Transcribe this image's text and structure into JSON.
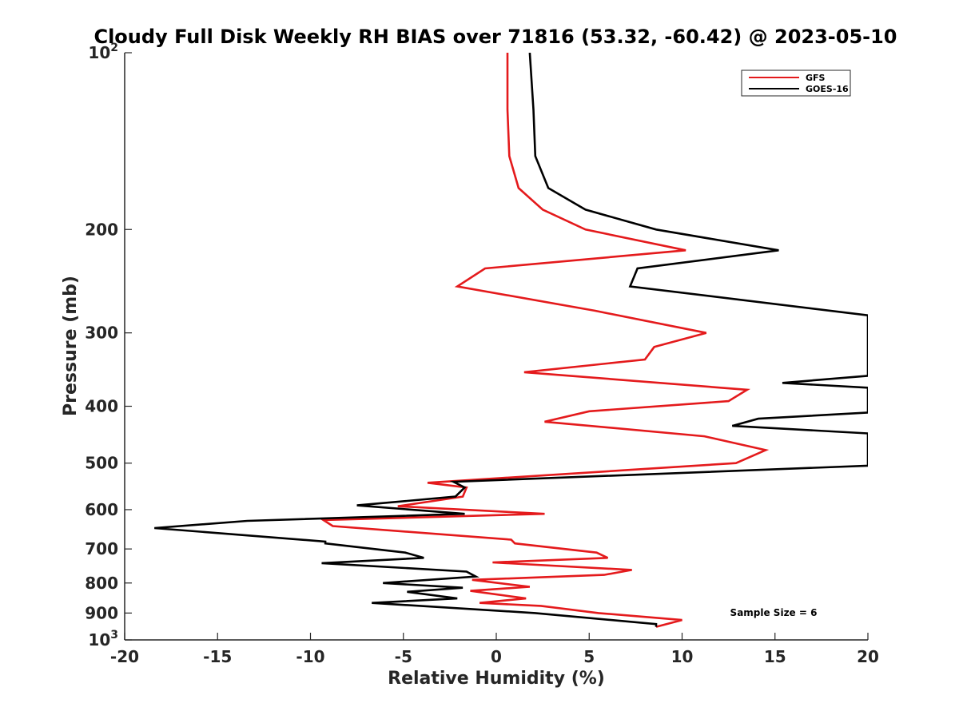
{
  "chart_data": {
    "type": "line",
    "title": "Cloudy Full Disk Weekly RH BIAS over 71816 (53.32, -60.42) @ 2023-05-10",
    "xlabel": "Relative Humidity (%)",
    "ylabel": "Pressure (mb)",
    "xlim": [
      -20,
      20
    ],
    "ylim": [
      100,
      1000
    ],
    "y_scale": "log",
    "y_reversed": true,
    "grid": false,
    "legend_position": "top-right",
    "x_ticks": [
      "-20",
      "-15",
      "-10",
      "-5",
      "0",
      "5",
      "10",
      "15",
      "20"
    ],
    "x_tick_values": [
      -20,
      -15,
      -10,
      -5,
      0,
      5,
      10,
      15,
      20
    ],
    "y_ticks": [
      {
        "value": 100,
        "base": "10",
        "exp": "2"
      },
      {
        "value": 200,
        "base": "200",
        "exp": ""
      },
      {
        "value": 300,
        "base": "300",
        "exp": ""
      },
      {
        "value": 400,
        "base": "400",
        "exp": ""
      },
      {
        "value": 500,
        "base": "500",
        "exp": ""
      },
      {
        "value": 600,
        "base": "600",
        "exp": ""
      },
      {
        "value": 700,
        "base": "700",
        "exp": ""
      },
      {
        "value": 800,
        "base": "800",
        "exp": ""
      },
      {
        "value": 900,
        "base": "900",
        "exp": ""
      },
      {
        "value": 1000,
        "base": "10",
        "exp": "3"
      }
    ],
    "annotation": "Sample Size = 6",
    "series": [
      {
        "name": "GFS",
        "color": "#e41a1c",
        "points": [
          [
            0.6,
            100
          ],
          [
            0.6,
            125
          ],
          [
            0.7,
            150
          ],
          [
            1.2,
            170
          ],
          [
            2.5,
            185
          ],
          [
            4.8,
            200
          ],
          [
            10.2,
            217
          ],
          [
            -0.6,
            233
          ],
          [
            -2.1,
            250
          ],
          [
            5.3,
            275
          ],
          [
            11.3,
            300
          ],
          [
            8.5,
            317
          ],
          [
            8.0,
            333
          ],
          [
            1.5,
            350
          ],
          [
            13.5,
            375
          ],
          [
            12.5,
            392
          ],
          [
            5.0,
            408
          ],
          [
            2.6,
            425
          ],
          [
            11.2,
            450
          ],
          [
            14.5,
            475
          ],
          [
            12.9,
            500
          ],
          [
            -3.7,
            540
          ],
          [
            -1.6,
            550
          ],
          [
            -1.8,
            570
          ],
          [
            -5.3,
            592
          ],
          [
            2.6,
            610
          ],
          [
            -9.3,
            625
          ],
          [
            -8.8,
            640
          ],
          [
            0.8,
            675
          ],
          [
            1.0,
            685
          ],
          [
            5.4,
            710
          ],
          [
            6.0,
            725
          ],
          [
            -0.2,
            738
          ],
          [
            7.3,
            760
          ],
          [
            5.8,
            775
          ],
          [
            -1.3,
            790
          ],
          [
            1.8,
            812
          ],
          [
            -1.4,
            825
          ],
          [
            1.6,
            850
          ],
          [
            -0.9,
            865
          ],
          [
            2.4,
            875
          ],
          [
            5.5,
            900
          ],
          [
            10.0,
            925
          ],
          [
            8.6,
            950
          ]
        ]
      },
      {
        "name": "GOES-16",
        "color": "#000000",
        "points": [
          [
            1.8,
            100
          ],
          [
            2.0,
            125
          ],
          [
            2.1,
            150
          ],
          [
            2.8,
            170
          ],
          [
            4.8,
            185
          ],
          [
            8.6,
            200
          ],
          [
            15.2,
            217
          ],
          [
            7.6,
            233
          ],
          [
            7.2,
            250
          ],
          [
            20.0,
            280
          ],
          [
            20.0,
            355
          ],
          [
            15.4,
            365
          ],
          [
            20.0,
            372
          ],
          [
            20.0,
            410
          ],
          [
            14.1,
            420
          ],
          [
            12.7,
            432
          ],
          [
            20.0,
            445
          ],
          [
            20.0,
            505
          ],
          [
            -2.3,
            538
          ],
          [
            -1.7,
            550
          ],
          [
            -2.2,
            570
          ],
          [
            -7.5,
            590
          ],
          [
            -1.7,
            610
          ],
          [
            -13.4,
            627
          ],
          [
            -18.4,
            645
          ],
          [
            -9.2,
            680
          ],
          [
            -9.2,
            685
          ],
          [
            -4.9,
            710
          ],
          [
            -3.9,
            725
          ],
          [
            -9.4,
            740
          ],
          [
            -1.6,
            765
          ],
          [
            -1.1,
            780
          ],
          [
            -6.1,
            800
          ],
          [
            -1.8,
            815
          ],
          [
            -4.8,
            828
          ],
          [
            -2.1,
            850
          ],
          [
            -6.7,
            865
          ],
          [
            2.1,
            900
          ],
          [
            8.6,
            940
          ],
          [
            8.6,
            950
          ]
        ]
      }
    ]
  }
}
